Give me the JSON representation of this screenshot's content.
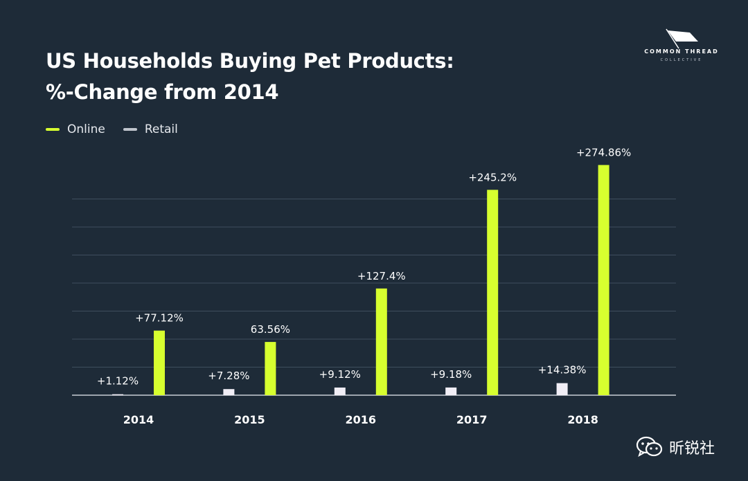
{
  "chart_data": {
    "type": "bar",
    "title": [
      "US Households Buying Pet Products:",
      "%-Change from 2014"
    ],
    "categories": [
      "2014",
      "2015",
      "2016",
      "2017",
      "2018"
    ],
    "series": [
      {
        "name": "Retail",
        "values": [
          1.12,
          7.28,
          9.12,
          9.18,
          14.38
        ],
        "labels": [
          "+1.12%",
          "+7.28%",
          "+9.12%",
          "+9.18%",
          "+14.38%"
        ],
        "color": "#f1eef6"
      },
      {
        "name": "Online",
        "values": [
          77.12,
          63.56,
          127.4,
          245.2,
          274.86
        ],
        "labels": [
          "+77.12%",
          "63.56%",
          "+127.4%",
          "+245.2%",
          "+274.86%"
        ],
        "color": "#d7ff2f"
      }
    ],
    "legend": {
      "placement": "top-left",
      "items": [
        {
          "label": "Online",
          "color": "#d7ff2f"
        },
        {
          "label": "Retail",
          "color": "#bfc4cc"
        }
      ]
    },
    "xlabel": "",
    "ylabel": "",
    "ylim": [
      0,
      300
    ],
    "grid": true,
    "gridline_count": 7
  },
  "logo": {
    "name": "COMMON THREAD",
    "subtitle": "COLLECTIVE"
  },
  "watermark": {
    "text": "昕锐社",
    "icon": "wechat-icon"
  },
  "colors": {
    "background": "#1e2b38",
    "grid": "#3f4e5e",
    "axis": "#c9ced6"
  }
}
